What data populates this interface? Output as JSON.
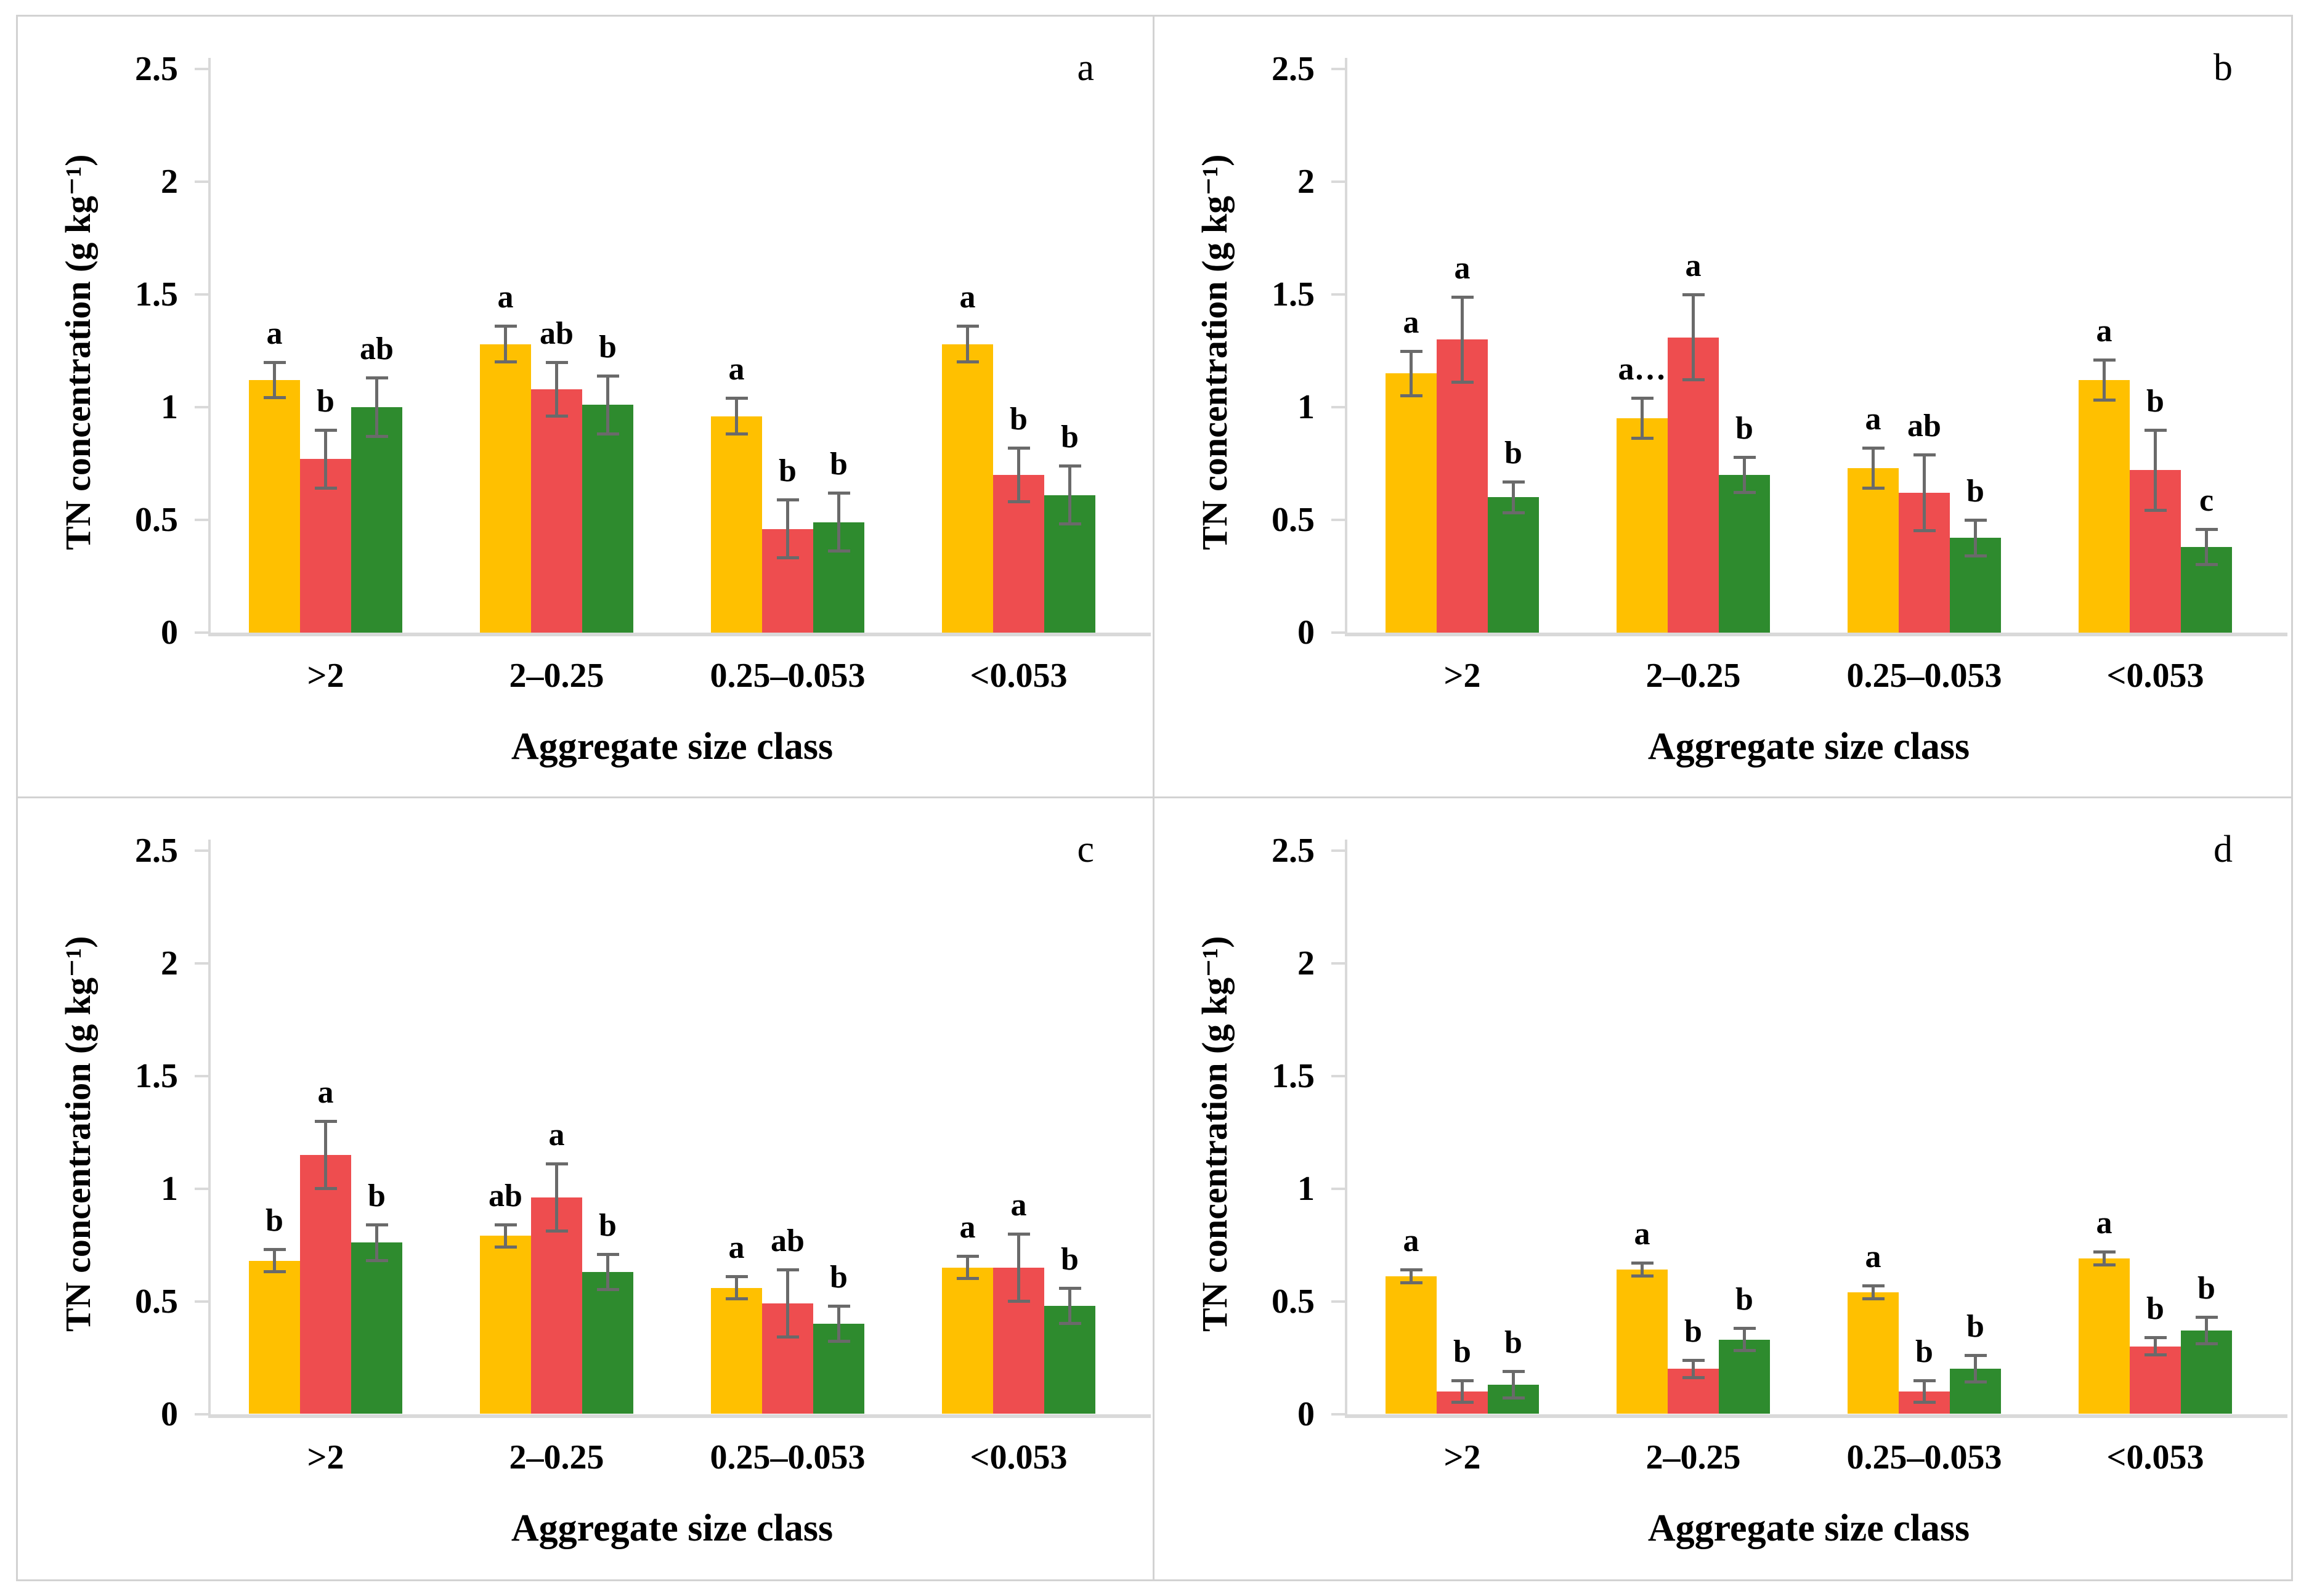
{
  "page": {
    "background": "#ffffff",
    "frame_border_color": "#d2d2d2",
    "axis_line_color": "#d9d9d9",
    "error_bar_color": "#6a6a6a",
    "text_color": "#000000"
  },
  "chart_data": [
    {
      "type": "bar",
      "panel_label": "a",
      "ylabel": "TN concentration (g kg⁻¹)",
      "xlabel": "Aggregate size class",
      "ylim": [
        0,
        2.5
      ],
      "yticks": [
        0,
        0.5,
        1,
        1.5,
        2,
        2.5
      ],
      "ytick_labels": [
        "0",
        "0.5",
        "1",
        "1.5",
        "2",
        "2.5"
      ],
      "grid": false,
      "legend": "none",
      "categories": [
        ">2",
        "2–0.25",
        "0.25–0.053",
        "<0.053"
      ],
      "series": [
        {
          "name": "yellow-series",
          "color": "#FFC000",
          "values": [
            1.12,
            1.28,
            0.96,
            1.28
          ],
          "errors": [
            0.08,
            0.08,
            0.08,
            0.08
          ],
          "letters": [
            "a",
            "a",
            "a",
            "a"
          ]
        },
        {
          "name": "red-series",
          "color": "#EE4D4F",
          "values": [
            0.77,
            1.08,
            0.46,
            0.7
          ],
          "errors": [
            0.13,
            0.12,
            0.13,
            0.12
          ],
          "letters": [
            "b",
            "ab",
            "b",
            "b"
          ]
        },
        {
          "name": "green-series",
          "color": "#2E8B2E",
          "values": [
            1.0,
            1.01,
            0.49,
            0.61
          ],
          "errors": [
            0.13,
            0.13,
            0.13,
            0.13
          ],
          "letters": [
            "ab",
            "b",
            "b",
            "b"
          ]
        }
      ]
    },
    {
      "type": "bar",
      "panel_label": "b",
      "ylabel": "TN concentration (g kg⁻¹)",
      "xlabel": "Aggregate size class",
      "ylim": [
        0,
        2.5
      ],
      "yticks": [
        0,
        0.5,
        1,
        1.5,
        2,
        2.5
      ],
      "ytick_labels": [
        "0",
        "0.5",
        "1",
        "1.5",
        "2",
        "2.5"
      ],
      "grid": false,
      "legend": "none",
      "categories": [
        ">2",
        "2–0.25",
        "0.25–0.053",
        "<0.053"
      ],
      "series": [
        {
          "name": "yellow-series",
          "color": "#FFC000",
          "values": [
            1.15,
            0.95,
            0.73,
            1.12
          ],
          "errors": [
            0.1,
            0.09,
            0.09,
            0.09
          ],
          "letters": [
            "a",
            "a…",
            "a",
            "a"
          ]
        },
        {
          "name": "red-series",
          "color": "#EE4D4F",
          "values": [
            1.3,
            1.31,
            0.62,
            0.72
          ],
          "errors": [
            0.19,
            0.19,
            0.17,
            0.18
          ],
          "letters": [
            "a",
            "a",
            "ab",
            "b"
          ]
        },
        {
          "name": "green-series",
          "color": "#2E8B2E",
          "values": [
            0.6,
            0.7,
            0.42,
            0.38
          ],
          "errors": [
            0.07,
            0.08,
            0.08,
            0.08
          ],
          "letters": [
            "b",
            "b",
            "b",
            "c"
          ]
        }
      ]
    },
    {
      "type": "bar",
      "panel_label": "c",
      "ylabel": "TN concentration (g kg⁻¹)",
      "xlabel": "Aggregate size class",
      "ylim": [
        0,
        2.5
      ],
      "yticks": [
        0,
        0.5,
        1,
        1.5,
        2,
        2.5
      ],
      "ytick_labels": [
        "0",
        "0.5",
        "1",
        "1.5",
        "2",
        "2.5"
      ],
      "grid": false,
      "legend": "none",
      "categories": [
        ">2",
        "2–0.25",
        "0.25–0.053",
        "<0.053"
      ],
      "series": [
        {
          "name": "yellow-series",
          "color": "#FFC000",
          "values": [
            0.68,
            0.79,
            0.56,
            0.65
          ],
          "errors": [
            0.05,
            0.05,
            0.05,
            0.05
          ],
          "letters": [
            "b",
            "ab",
            "a",
            "a"
          ]
        },
        {
          "name": "red-series",
          "color": "#EE4D4F",
          "values": [
            1.15,
            0.96,
            0.49,
            0.65
          ],
          "errors": [
            0.15,
            0.15,
            0.15,
            0.15
          ],
          "letters": [
            "a",
            "a",
            "ab",
            "a"
          ]
        },
        {
          "name": "green-series",
          "color": "#2E8B2E",
          "values": [
            0.76,
            0.63,
            0.4,
            0.48
          ],
          "errors": [
            0.08,
            0.08,
            0.08,
            0.08
          ],
          "letters": [
            "b",
            "b",
            "b",
            "b"
          ]
        }
      ]
    },
    {
      "type": "bar",
      "panel_label": "d",
      "ylabel": "TN concentration (g kg⁻¹)",
      "xlabel": "Aggregate size class",
      "ylim": [
        0,
        2.5
      ],
      "yticks": [
        0,
        0.5,
        1,
        1.5,
        2,
        2.5
      ],
      "ytick_labels": [
        "0",
        "0.5",
        "1",
        "1.5",
        "2",
        "2.5"
      ],
      "grid": false,
      "legend": "none",
      "categories": [
        ">2",
        "2–0.25",
        "0.25–0.053",
        "<0.053"
      ],
      "series": [
        {
          "name": "yellow-series",
          "color": "#FFC000",
          "values": [
            0.61,
            0.64,
            0.54,
            0.69
          ],
          "errors": [
            0.03,
            0.03,
            0.03,
            0.03
          ],
          "letters": [
            "a",
            "a",
            "a",
            "a"
          ]
        },
        {
          "name": "red-series",
          "color": "#EE4D4F",
          "values": [
            0.1,
            0.2,
            0.1,
            0.3
          ],
          "errors": [
            0.05,
            0.04,
            0.05,
            0.04
          ],
          "letters": [
            "b",
            "b",
            "b",
            "b"
          ]
        },
        {
          "name": "green-series",
          "color": "#2E8B2E",
          "values": [
            0.13,
            0.33,
            0.2,
            0.37
          ],
          "errors": [
            0.06,
            0.05,
            0.06,
            0.06
          ],
          "letters": [
            "b",
            "b",
            "b",
            "b"
          ]
        }
      ]
    }
  ]
}
